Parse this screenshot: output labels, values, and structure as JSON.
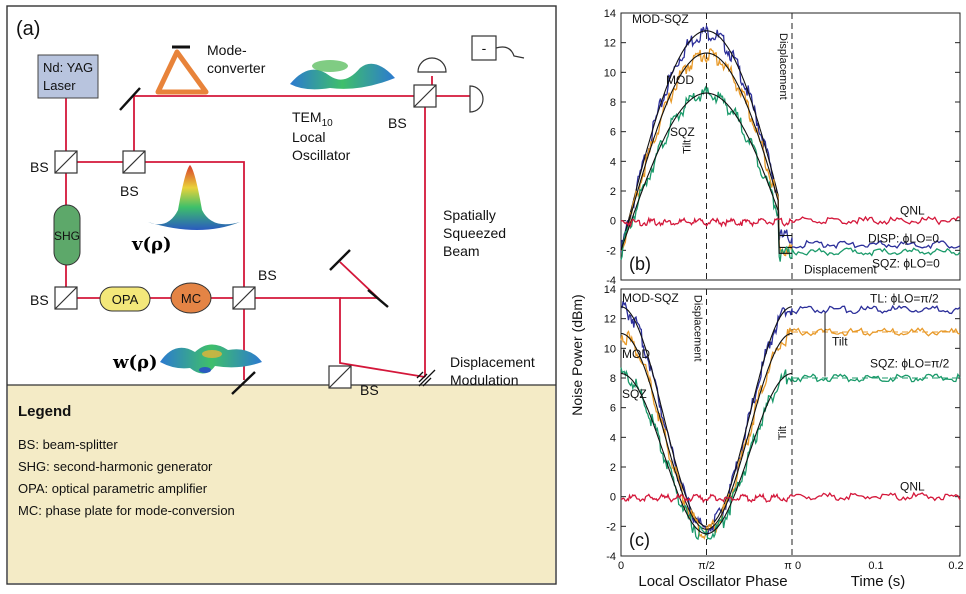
{
  "panel_a": {
    "tag": "(a)",
    "laser": [
      "Nd: YAG",
      "Laser"
    ],
    "mode_converter": [
      "Mode-",
      "converter"
    ],
    "tem_label": "TEM",
    "tem_sub": "10",
    "lo_label": [
      "Local",
      "Oscillator"
    ],
    "bs": "BS",
    "shg": "SHG",
    "opa": "OPA",
    "mc": "MC",
    "minus": "-",
    "v_rho": "v(ρ)",
    "w_rho": "w(ρ)",
    "squeezed": [
      "Spatially",
      "Squeezed",
      "Beam"
    ],
    "displacement": [
      "Displacement",
      "Modulation"
    ],
    "colors": {
      "laser_fill": "#b8c4de",
      "beam": "#d4173a",
      "shg": "#5da86a",
      "opa": "#f3e77a",
      "mc": "#e48445",
      "legend_fill": "#f4ebc6"
    }
  },
  "legend": {
    "title": "Legend",
    "items": [
      "BS: beam-splitter",
      "SHG: second-harmonic generator",
      "OPA: optical parametric amplifier",
      "MC: phase plate for mode-conversion"
    ]
  },
  "chart_data": [
    {
      "type": "line",
      "panel": "(b)",
      "xlabel": "Local Oscillator Phase",
      "ylabel": "Noise Power (dBm)",
      "ylim": [
        -4,
        14
      ],
      "yticks": [
        "-4",
        "-2",
        "0",
        "2",
        "4",
        "6",
        "8",
        "10",
        "12",
        "14"
      ],
      "xlim_phase": [
        0,
        3.1416
      ],
      "time_xlim": [
        0,
        0.2
      ],
      "series": [
        {
          "name": "MOD-SQZ",
          "color": "#2c2f9a",
          "phase_peak": 12.8,
          "phase_end": -1.0,
          "dc_after": -1.6
        },
        {
          "name": "MOD",
          "color": "#e89a2a",
          "phase_peak": 11.3,
          "phase_end": -1.8,
          "dc_after": null
        },
        {
          "name": "SQZ",
          "color": "#1a9a6a",
          "phase_peak": 8.6,
          "phase_end": -2.2,
          "dc_after": -2.1
        },
        {
          "name": "QNL",
          "color": "#d4173a",
          "phase_peak": 0,
          "phase_end": 0,
          "dc_after": 0
        }
      ],
      "annotations": {
        "displacement": "Displacement",
        "tilt": "Tilt",
        "qnl": "QNL",
        "disp": "DISP: ϕLO=0",
        "sqz": "SQZ: ϕLO=0",
        "displacement_low": "Displacement"
      }
    },
    {
      "type": "line",
      "panel": "(c)",
      "xlabel": "Time (s)",
      "ylim": [
        -4,
        14
      ],
      "yticks": [
        "-4",
        "-2",
        "0",
        "2",
        "4",
        "6",
        "8",
        "10",
        "12",
        "14"
      ],
      "xticks_phase": [
        "0",
        "π/2",
        "π"
      ],
      "xticks_time": [
        "0",
        "0.1",
        "0.2"
      ],
      "series": [
        {
          "name": "MOD-SQZ",
          "color": "#2c2f9a",
          "edge": 12.8,
          "min": -2.0,
          "dc_after": 12.6
        },
        {
          "name": "MOD",
          "color": "#e89a2a",
          "edge": 11.0,
          "min": -2.2,
          "dc_after": 11.1
        },
        {
          "name": "SQZ",
          "color": "#1a9a6a",
          "edge": 8.3,
          "min": -2.5,
          "dc_after": 8.0
        },
        {
          "name": "QNL",
          "color": "#d4173a",
          "edge": 0,
          "min": 0,
          "dc_after": 0
        }
      ],
      "annotations": {
        "displacement": "Displacement",
        "tilt_mid": "Tilt",
        "tilt": "Tilt",
        "qnl": "QNL",
        "tl": "TL: ϕLO=π/2",
        "sqz": "SQZ: ϕLO=π/2"
      }
    }
  ]
}
